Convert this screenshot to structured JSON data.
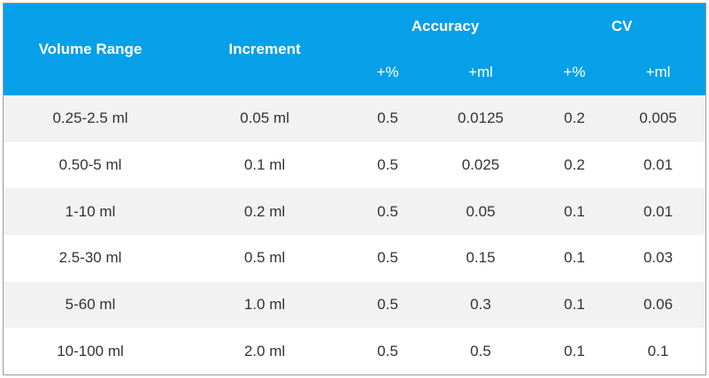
{
  "header": {
    "volume_range": "Volume Range",
    "increment": "Increment",
    "accuracy": "Accuracy",
    "cv": "CV",
    "sub": {
      "accuracy_pct": "+%",
      "accuracy_ml": "+ml",
      "cv_pct": "+%",
      "cv_ml": "+ml"
    }
  },
  "rows": [
    {
      "range": "0.25-2.5 ml",
      "increment": "0.05 ml",
      "acc_pct": "0.5",
      "acc_ml": "0.0125",
      "cv_pct": "0.2",
      "cv_ml": "0.005"
    },
    {
      "range": "0.50-5 ml",
      "increment": "0.1 ml",
      "acc_pct": "0.5",
      "acc_ml": "0.025",
      "cv_pct": "0.2",
      "cv_ml": "0.01"
    },
    {
      "range": "1-10 ml",
      "increment": "0.2 ml",
      "acc_pct": "0.5",
      "acc_ml": "0.05",
      "cv_pct": "0.1",
      "cv_ml": "0.01"
    },
    {
      "range": "2.5-30 ml",
      "increment": "0.5 ml",
      "acc_pct": "0.5",
      "acc_ml": "0.15",
      "cv_pct": "0.1",
      "cv_ml": "0.03"
    },
    {
      "range": "5-60 ml",
      "increment": "1.0 ml",
      "acc_pct": "0.5",
      "acc_ml": "0.3",
      "cv_pct": "0.1",
      "cv_ml": "0.06"
    },
    {
      "range": "10-100 ml",
      "increment": "2.0 ml",
      "acc_pct": "0.5",
      "acc_ml": "0.5",
      "cv_pct": "0.1",
      "cv_ml": "0.1"
    }
  ],
  "colors": {
    "header_bg": "#05a0e8",
    "header_text": "#ffffff",
    "row_alt_bg": "#f2f2f2",
    "row_bg": "#ffffff",
    "cell_text": "#333333"
  }
}
